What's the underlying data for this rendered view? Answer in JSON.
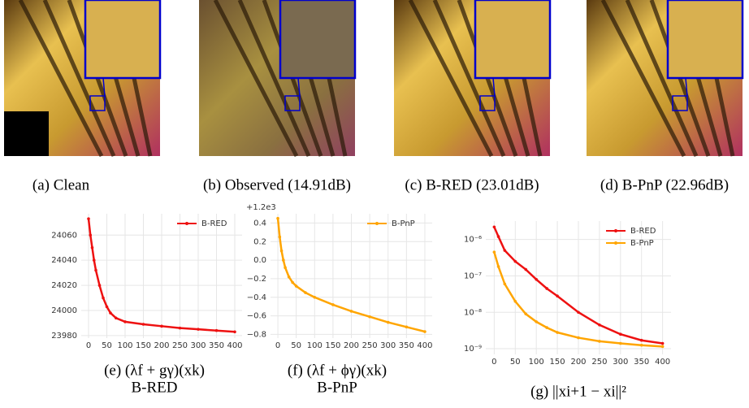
{
  "panels": [
    {
      "caption": "(a) Clean"
    },
    {
      "caption": "(b) Observed (14.91dB)"
    },
    {
      "caption": "(c) B-RED (23.01dB)"
    },
    {
      "caption": "(d) B-PnP (22.96dB)"
    }
  ],
  "chart_data": [
    {
      "type": "line",
      "caption": "(e) (λf + gγ)(xk)",
      "caption_sub": "B-RED",
      "x": [
        0,
        5,
        10,
        15,
        20,
        30,
        40,
        50,
        60,
        75,
        100,
        150,
        200,
        250,
        300,
        350,
        400
      ],
      "series": [
        {
          "name": "B-RED",
          "color": "#ee1111",
          "values": [
            24073,
            24060,
            24050,
            24040,
            24032,
            24020,
            24010,
            24003,
            23998,
            23994,
            23991,
            23989,
            23987.5,
            23986,
            23985,
            23984,
            23983
          ]
        }
      ],
      "xlim": [
        -20,
        420
      ],
      "ylim": [
        23978,
        24077
      ],
      "xticks": [
        0,
        50,
        100,
        150,
        200,
        250,
        300,
        350,
        400
      ],
      "yticks": [
        23980,
        24000,
        24020,
        24040,
        24060
      ],
      "grid": true,
      "legend": "upper right"
    },
    {
      "type": "line",
      "caption": "(f) (λf + ϕγ)(xk)",
      "caption_sub": "B-PnP",
      "offset_text": "+1.2e3",
      "x": [
        0,
        5,
        10,
        15,
        20,
        30,
        40,
        50,
        75,
        100,
        150,
        200,
        250,
        300,
        350,
        400
      ],
      "series": [
        {
          "name": "B-PnP",
          "color": "#ffa500",
          "values": [
            0.45,
            0.25,
            0.1,
            0.0,
            -0.08,
            -0.18,
            -0.24,
            -0.28,
            -0.35,
            -0.4,
            -0.48,
            -0.55,
            -0.61,
            -0.67,
            -0.72,
            -0.77
          ]
        }
      ],
      "xlim": [
        -20,
        420
      ],
      "ylim": [
        -0.84,
        0.5
      ],
      "xticks": [
        0,
        50,
        100,
        150,
        200,
        250,
        300,
        350,
        400
      ],
      "yticks": [
        {
          "value": -0.8,
          "label": "−0.8"
        },
        {
          "value": -0.6,
          "label": "−0.6"
        },
        {
          "value": -0.4,
          "label": "−0.4"
        },
        {
          "value": -0.2,
          "label": "−0.2"
        },
        {
          "value": 0,
          "label": "0.0"
        },
        0.2,
        0.4
      ],
      "grid": true,
      "legend": "upper right"
    },
    {
      "type": "line",
      "caption": "(g) ||xi+1 − xi||²",
      "log_y": true,
      "x": [
        0,
        10,
        25,
        50,
        75,
        100,
        125,
        150,
        200,
        250,
        300,
        350,
        400
      ],
      "series": [
        {
          "name": "B-RED",
          "color": "#ee1111",
          "values": [
            2.2e-06,
            1.2e-06,
            5e-07,
            2.5e-07,
            1.5e-07,
            8e-08,
            4.5e-08,
            2.8e-08,
            1e-08,
            4.5e-09,
            2.5e-09,
            1.7e-09,
            1.4e-09
          ]
        },
        {
          "name": "B-PnP",
          "color": "#ffa500",
          "values": [
            4.5e-07,
            1.8e-07,
            6e-08,
            2e-08,
            9e-09,
            5.5e-09,
            3.8e-09,
            2.8e-09,
            2e-09,
            1.6e-09,
            1.4e-09,
            1.25e-09,
            1.15e-09
          ]
        }
      ],
      "xlim": [
        -20,
        420
      ],
      "ylim": [
        7e-10,
        3.2e-06
      ],
      "xticks": [
        0,
        50,
        100,
        150,
        200,
        250,
        300,
        350,
        400
      ],
      "yticks": [
        {
          "value": 1e-09,
          "label": "10⁻⁹"
        },
        {
          "value": 1e-08,
          "label": "10⁻⁸"
        },
        {
          "value": 1e-07,
          "label": "10⁻⁷"
        },
        {
          "value": 1e-06,
          "label": "10⁻⁶"
        }
      ],
      "grid": true,
      "legend": "upper right"
    }
  ]
}
